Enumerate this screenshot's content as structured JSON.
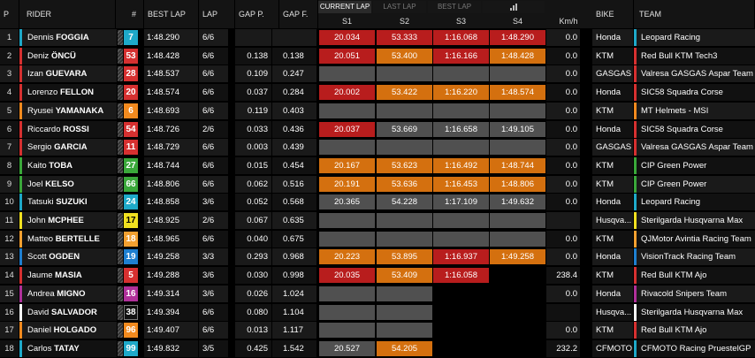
{
  "headers": {
    "pos": "P",
    "rider": "RIDER",
    "num": "#",
    "best_lap": "BEST LAP",
    "lap": "LAP",
    "gap_p": "GAP P.",
    "gap_f": "GAP F.",
    "tabs": [
      "CURRENT LAP",
      "LAST LAP",
      "BEST LAP"
    ],
    "sectors": [
      "S1",
      "S2",
      "S3",
      "S4",
      "Km/h"
    ],
    "bike": "BIKE",
    "team": "TEAM"
  },
  "colors": {
    "sector_red": "#b81d1d",
    "sector_orange": "#d4700f",
    "sector_grey": "#505050"
  },
  "rows": [
    {
      "pos": "1",
      "first": "Dennis",
      "last": "FOGGIA",
      "num": "7",
      "num_bg": "#1ea9c9",
      "num_fg": "#ffffff",
      "rider_color": "#1ea9c9",
      "best": "1:48.290",
      "lap": "6/6",
      "gap_p": "",
      "gap_f": "",
      "s": [
        [
          "20.034",
          "red"
        ],
        [
          "53.333",
          "red"
        ],
        [
          "1:16.068",
          "red"
        ],
        [
          "1:48.290",
          "red"
        ]
      ],
      "kmh": "0.0",
      "bike": "Honda",
      "team": "Leopard Racing",
      "team_color": "#1ea9c9"
    },
    {
      "pos": "2",
      "first": "Deniz",
      "last": "ÖNCÜ",
      "num": "53",
      "num_bg": "#d63030",
      "num_fg": "#ffffff",
      "rider_color": "#d63030",
      "best": "1:48.428",
      "lap": "6/6",
      "gap_p": "0.138",
      "gap_f": "0.138",
      "s": [
        [
          "20.051",
          "red"
        ],
        [
          "53.400",
          "org"
        ],
        [
          "1:16.166",
          "red"
        ],
        [
          "1:48.428",
          "org"
        ]
      ],
      "kmh": "0.0",
      "bike": "KTM",
      "team": "Red Bull KTM Tech3",
      "team_color": "#d63030"
    },
    {
      "pos": "3",
      "first": "Izan",
      "last": "GUEVARA",
      "num": "28",
      "num_bg": "#d63030",
      "num_fg": "#ffffff",
      "rider_color": "#d63030",
      "best": "1:48.537",
      "lap": "6/6",
      "gap_p": "0.109",
      "gap_f": "0.247",
      "s": [
        [
          "",
          "gry"
        ],
        [
          "",
          "gry"
        ],
        [
          "",
          "gry"
        ],
        [
          "",
          "gry"
        ]
      ],
      "kmh": "0.0",
      "bike": "GASGAS",
      "team": "Valresa GASGAS Aspar Team",
      "team_color": "#d63030"
    },
    {
      "pos": "4",
      "first": "Lorenzo",
      "last": "FELLON",
      "num": "20",
      "num_bg": "#d63030",
      "num_fg": "#ffffff",
      "rider_color": "#d63030",
      "best": "1:48.574",
      "lap": "6/6",
      "gap_p": "0.037",
      "gap_f": "0.284",
      "s": [
        [
          "20.002",
          "red"
        ],
        [
          "53.422",
          "org"
        ],
        [
          "1:16.220",
          "org"
        ],
        [
          "1:48.574",
          "org"
        ]
      ],
      "kmh": "0.0",
      "bike": "Honda",
      "team": "SIC58 Squadra Corse",
      "team_color": "#d63030"
    },
    {
      "pos": "5",
      "first": "Ryusei",
      "last": "YAMANAKA",
      "num": "6",
      "num_bg": "#f28a1e",
      "num_fg": "#ffffff",
      "rider_color": "#f28a1e",
      "best": "1:48.693",
      "lap": "6/6",
      "gap_p": "0.119",
      "gap_f": "0.403",
      "s": [
        [
          "",
          "gry"
        ],
        [
          "",
          "gry"
        ],
        [
          "",
          "gry"
        ],
        [
          "",
          "gry"
        ]
      ],
      "kmh": "0.0",
      "bike": "KTM",
      "team": "MT Helmets - MSI",
      "team_color": "#f28a1e"
    },
    {
      "pos": "6",
      "first": "Riccardo",
      "last": "ROSSI",
      "num": "54",
      "num_bg": "#d63030",
      "num_fg": "#ffffff",
      "rider_color": "#d63030",
      "best": "1:48.726",
      "lap": "2/6",
      "gap_p": "0.033",
      "gap_f": "0.436",
      "s": [
        [
          "20.037",
          "red"
        ],
        [
          "53.669",
          "gry"
        ],
        [
          "1:16.658",
          "gry"
        ],
        [
          "1:49.105",
          "gry"
        ]
      ],
      "kmh": "0.0",
      "bike": "Honda",
      "team": "SIC58 Squadra Corse",
      "team_color": "#d63030"
    },
    {
      "pos": "7",
      "first": "Sergio",
      "last": "GARCIA",
      "num": "11",
      "num_bg": "#d63030",
      "num_fg": "#ffffff",
      "rider_color": "#d63030",
      "best": "1:48.729",
      "lap": "6/6",
      "gap_p": "0.003",
      "gap_f": "0.439",
      "s": [
        [
          "",
          "gry"
        ],
        [
          "",
          "gry"
        ],
        [
          "",
          "gry"
        ],
        [
          "",
          "gry"
        ]
      ],
      "kmh": "0.0",
      "bike": "GASGAS",
      "team": "Valresa GASGAS Aspar Team",
      "team_color": "#d63030"
    },
    {
      "pos": "8",
      "first": "Kaito",
      "last": "TOBA",
      "num": "27",
      "num_bg": "#3aa83a",
      "num_fg": "#ffffff",
      "rider_color": "#3aa83a",
      "best": "1:48.744",
      "lap": "6/6",
      "gap_p": "0.015",
      "gap_f": "0.454",
      "s": [
        [
          "20.167",
          "org"
        ],
        [
          "53.623",
          "org"
        ],
        [
          "1:16.492",
          "org"
        ],
        [
          "1:48.744",
          "org"
        ]
      ],
      "kmh": "0.0",
      "bike": "KTM",
      "team": "CIP Green Power",
      "team_color": "#3aa83a"
    },
    {
      "pos": "9",
      "first": "Joel",
      "last": "KELSO",
      "num": "66",
      "num_bg": "#3aa83a",
      "num_fg": "#ffffff",
      "rider_color": "#3aa83a",
      "best": "1:48.806",
      "lap": "6/6",
      "gap_p": "0.062",
      "gap_f": "0.516",
      "s": [
        [
          "20.191",
          "org"
        ],
        [
          "53.636",
          "org"
        ],
        [
          "1:16.453",
          "org"
        ],
        [
          "1:48.806",
          "org"
        ]
      ],
      "kmh": "0.0",
      "bike": "KTM",
      "team": "CIP Green Power",
      "team_color": "#3aa83a"
    },
    {
      "pos": "10",
      "first": "Tatsuki",
      "last": "SUZUKI",
      "num": "24",
      "num_bg": "#1ea9c9",
      "num_fg": "#ffffff",
      "rider_color": "#1ea9c9",
      "best": "1:48.858",
      "lap": "3/6",
      "gap_p": "0.052",
      "gap_f": "0.568",
      "s": [
        [
          "20.365",
          "gry"
        ],
        [
          "54.228",
          "gry"
        ],
        [
          "1:17.109",
          "gry"
        ],
        [
          "1:49.632",
          "gry"
        ]
      ],
      "kmh": "0.0",
      "bike": "Honda",
      "team": "Leopard Racing",
      "team_color": "#1ea9c9"
    },
    {
      "pos": "11",
      "first": "John",
      "last": "MCPHEE",
      "num": "17",
      "num_bg": "#f0e020",
      "num_fg": "#000000",
      "rider_color": "#f0e020",
      "best": "1:48.925",
      "lap": "2/6",
      "gap_p": "0.067",
      "gap_f": "0.635",
      "s": [
        [
          "",
          "gry"
        ],
        [
          "",
          "gry"
        ],
        [
          "",
          "gry"
        ],
        [
          "",
          "gry"
        ]
      ],
      "kmh": "",
      "bike": "Husqva...",
      "team": "Sterilgarda Husqvarna Max",
      "team_color": "#f0e020"
    },
    {
      "pos": "12",
      "first": "Matteo",
      "last": "BERTELLE",
      "num": "18",
      "num_bg": "#f2a030",
      "num_fg": "#ffffff",
      "rider_color": "#f2a030",
      "best": "1:48.965",
      "lap": "6/6",
      "gap_p": "0.040",
      "gap_f": "0.675",
      "s": [
        [
          "",
          "gry"
        ],
        [
          "",
          "gry"
        ],
        [
          "",
          "gry"
        ],
        [
          "",
          "gry"
        ]
      ],
      "kmh": "0.0",
      "bike": "KTM",
      "team": "QJMotor Avintia Racing Team",
      "team_color": "#f2a030"
    },
    {
      "pos": "13",
      "first": "Scott",
      "last": "OGDEN",
      "num": "19",
      "num_bg": "#1e7fd0",
      "num_fg": "#ffffff",
      "rider_color": "#1e7fd0",
      "best": "1:49.258",
      "lap": "3/3",
      "gap_p": "0.293",
      "gap_f": "0.968",
      "s": [
        [
          "20.223",
          "org"
        ],
        [
          "53.895",
          "org"
        ],
        [
          "1:16.937",
          "red"
        ],
        [
          "1:49.258",
          "org"
        ]
      ],
      "kmh": "0.0",
      "bike": "Honda",
      "team": "VisionTrack Racing Team",
      "team_color": "#1e7fd0"
    },
    {
      "pos": "14",
      "first": "Jaume",
      "last": "MASIA",
      "num": "5",
      "num_bg": "#d63030",
      "num_fg": "#ffffff",
      "rider_color": "#d63030",
      "best": "1:49.288",
      "lap": "3/6",
      "gap_p": "0.030",
      "gap_f": "0.998",
      "s": [
        [
          "20.035",
          "red"
        ],
        [
          "53.409",
          "org"
        ],
        [
          "1:16.058",
          "red"
        ],
        [
          "",
          "none"
        ]
      ],
      "kmh": "238.4",
      "bike": "KTM",
      "team": "Red Bull KTM Ajo",
      "team_color": "#d63030"
    },
    {
      "pos": "15",
      "first": "Andrea",
      "last": "MIGNO",
      "num": "16",
      "num_bg": "#b0309a",
      "num_fg": "#ffffff",
      "rider_color": "#b0309a",
      "best": "1:49.314",
      "lap": "3/6",
      "gap_p": "0.026",
      "gap_f": "1.024",
      "s": [
        [
          "",
          "gry"
        ],
        [
          "",
          "gry"
        ],
        [
          "",
          "none"
        ],
        [
          "",
          "none"
        ]
      ],
      "kmh": "0.0",
      "bike": "Honda",
      "team": "Rivacold Snipers Team",
      "team_color": "#b0309a"
    },
    {
      "pos": "16",
      "first": "David",
      "last": "SALVADOR",
      "num": "38",
      "num_bg": "#111111",
      "num_fg": "#ffffff",
      "rider_color": "#ffffff",
      "best": "1:49.394",
      "lap": "6/6",
      "gap_p": "0.080",
      "gap_f": "1.104",
      "s": [
        [
          "",
          "gry"
        ],
        [
          "",
          "gry"
        ],
        [
          "",
          "none"
        ],
        [
          "",
          "none"
        ]
      ],
      "kmh": "",
      "bike": "Husqva...",
      "team": "Sterilgarda Husqvarna Max",
      "team_color": "#ffffff"
    },
    {
      "pos": "17",
      "first": "Daniel",
      "last": "HOLGADO",
      "num": "96",
      "num_bg": "#f28a1e",
      "num_fg": "#ffffff",
      "rider_color": "#f28a1e",
      "best": "1:49.407",
      "lap": "6/6",
      "gap_p": "0.013",
      "gap_f": "1.117",
      "s": [
        [
          "",
          "gry"
        ],
        [
          "",
          "gry"
        ],
        [
          "",
          "none"
        ],
        [
          "",
          "none"
        ]
      ],
      "kmh": "0.0",
      "bike": "KTM",
      "team": "Red Bull KTM Ajo",
      "team_color": "#d63030"
    },
    {
      "pos": "18",
      "first": "Carlos",
      "last": "TATAY",
      "num": "99",
      "num_bg": "#1ea9c9",
      "num_fg": "#ffffff",
      "rider_color": "#1ea9c9",
      "best": "1:49.832",
      "lap": "3/5",
      "gap_p": "0.425",
      "gap_f": "1.542",
      "s": [
        [
          "20.527",
          "gry"
        ],
        [
          "54.205",
          "org"
        ],
        [
          "",
          "none"
        ],
        [
          "",
          "none"
        ]
      ],
      "kmh": "232.2",
      "bike": "CFMOTO",
      "team": "CFMOTO Racing PruestelGP",
      "team_color": "#1ea9c9"
    }
  ]
}
